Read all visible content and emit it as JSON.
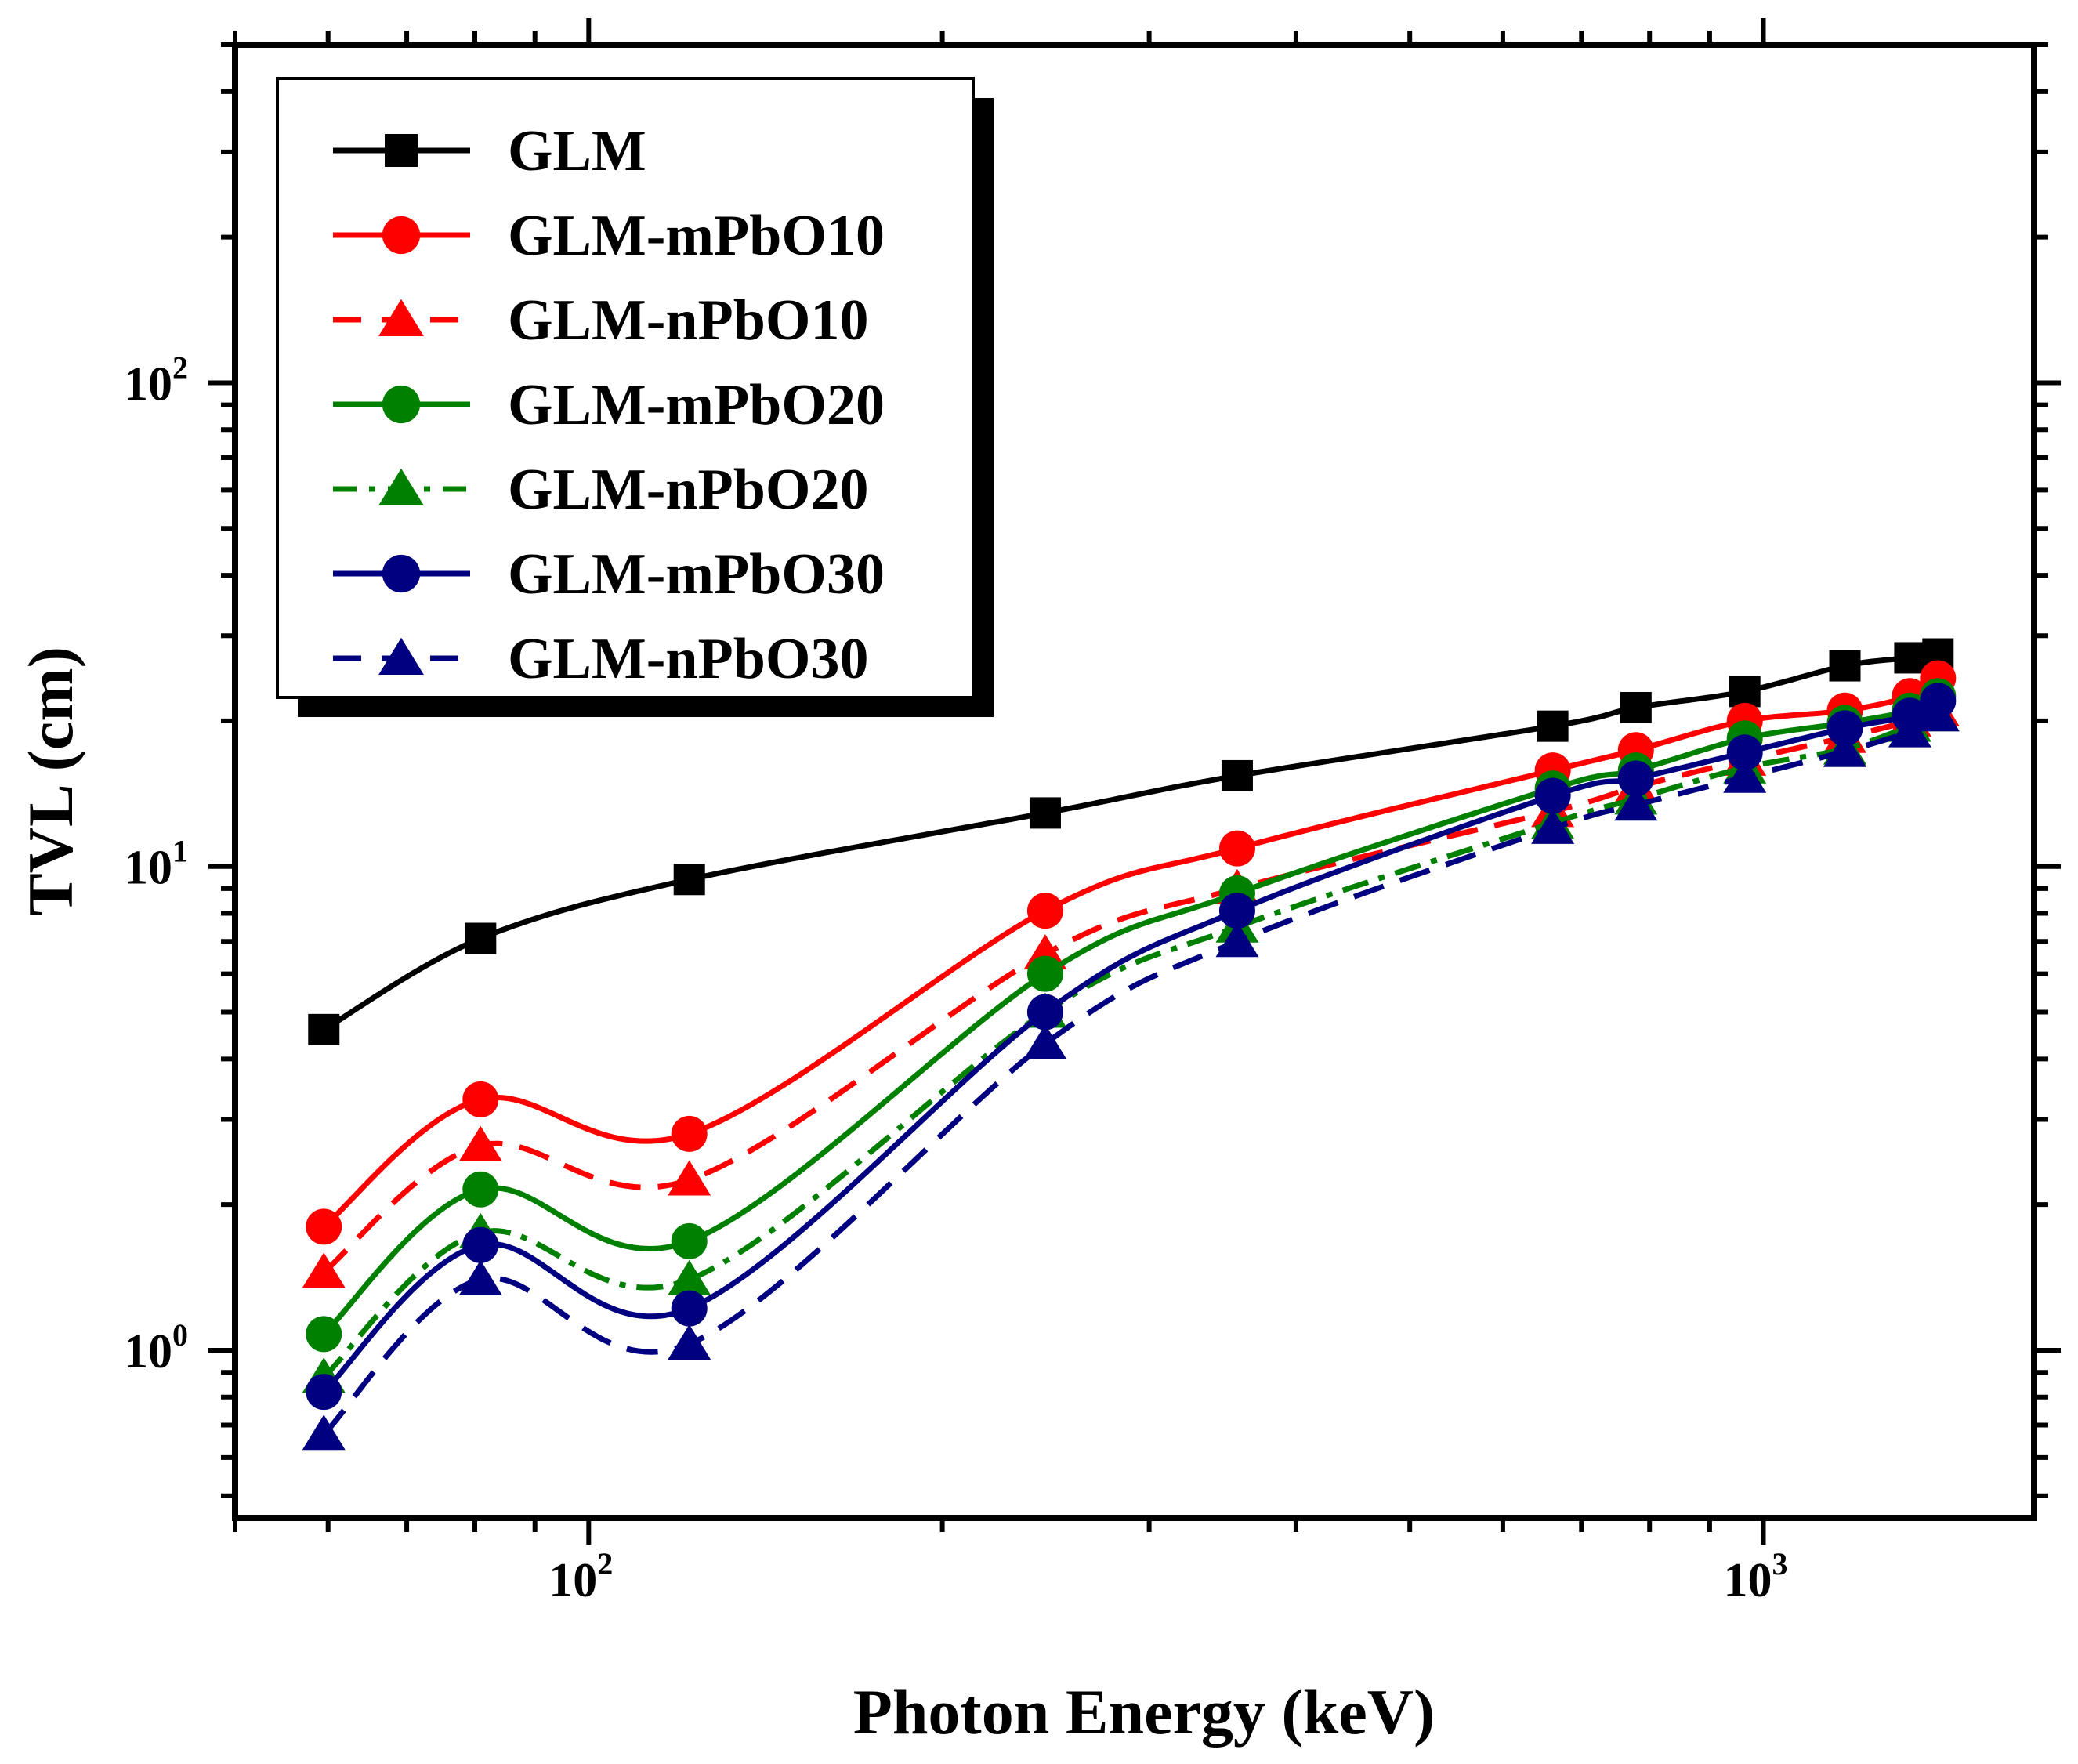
{
  "chart_data": {
    "type": "line",
    "title": "",
    "xlabel": "Photon Energy (keV)",
    "ylabel": "TVL (cm)",
    "xscale": "log",
    "yscale": "log",
    "xlim": [
      50,
      1700
    ],
    "ylim": [
      0.45,
      500
    ],
    "x_ticks": [
      {
        "base": "10",
        "exp": "2"
      },
      {
        "base": "10",
        "exp": "3"
      }
    ],
    "y_ticks": [
      {
        "base": "10",
        "exp": "0"
      },
      {
        "base": "10",
        "exp": "1"
      },
      {
        "base": "10",
        "exp": "2"
      }
    ],
    "legend_position": "top-left",
    "x": [
      59.5,
      80.9,
      121.8,
      244.7,
      356.5,
      661.7,
      778.9,
      964.1,
      1173.2,
      1332.5,
      1408
    ],
    "series": [
      {
        "name": "GLM",
        "color": "#000000",
        "marker": "square",
        "dash": "solid",
        "values": [
          4.6,
          7.1,
          9.4,
          12.9,
          15.4,
          19.5,
          21.3,
          23.0,
          26.0,
          27.0,
          27.5
        ]
      },
      {
        "name": "GLM-mPbO10",
        "color": "#ff0000",
        "marker": "circle",
        "dash": "solid",
        "values": [
          1.8,
          3.3,
          2.8,
          8.1,
          10.9,
          15.8,
          17.4,
          20.0,
          21.0,
          22.5,
          24.5
        ]
      },
      {
        "name": "GLM-nPbO10",
        "color": "#ff0000",
        "marker": "triangle",
        "dash": "dash",
        "values": [
          1.45,
          2.65,
          2.25,
          6.6,
          9.0,
          13.0,
          14.6,
          16.6,
          18.5,
          20.0,
          21.0
        ]
      },
      {
        "name": "GLM-mPbO20",
        "color": "#008000",
        "marker": "circle",
        "dash": "solid",
        "values": [
          1.08,
          2.15,
          1.68,
          6.0,
          8.8,
          14.5,
          15.8,
          18.4,
          19.8,
          21.0,
          22.5
        ]
      },
      {
        "name": "GLM-nPbO20",
        "color": "#008000",
        "marker": "triangle",
        "dash": "dashdot",
        "values": [
          0.88,
          1.75,
          1.4,
          5.0,
          7.5,
          12.3,
          13.8,
          16.0,
          17.5,
          19.5,
          20.5
        ]
      },
      {
        "name": "GLM-mPbO30",
        "color": "#000080",
        "marker": "circle",
        "dash": "solid",
        "values": [
          0.82,
          1.65,
          1.22,
          5.0,
          8.1,
          14.0,
          15.2,
          17.2,
          19.3,
          20.5,
          22.0
        ]
      },
      {
        "name": "GLM-nPbO30",
        "color": "#000080",
        "marker": "triangle",
        "dash": "dash",
        "values": [
          0.67,
          1.4,
          1.03,
          4.3,
          7.0,
          12.0,
          13.4,
          15.3,
          17.3,
          19.0,
          20.5
        ]
      }
    ]
  }
}
